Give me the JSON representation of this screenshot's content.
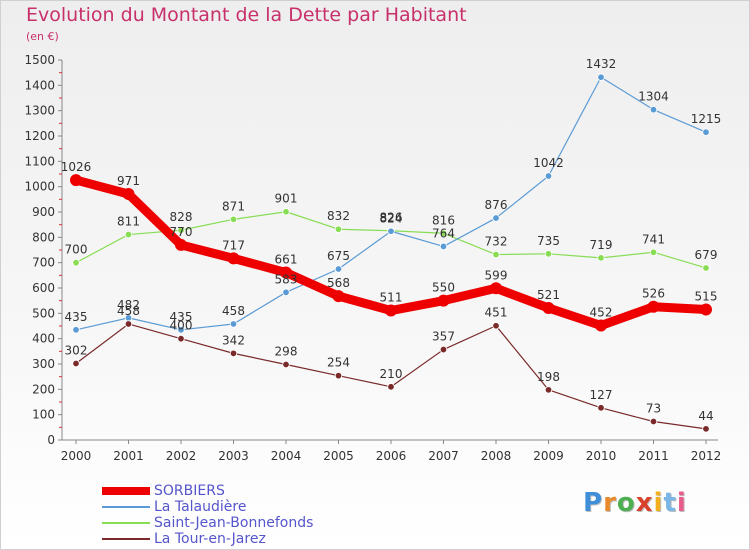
{
  "title": "Evolution du Montant de la Dette par Habitant",
  "subtitle": "(en €)",
  "logo": {
    "text": "Proxiti",
    "colors": [
      "#3f8fd8",
      "#e98a2a",
      "#4caf50",
      "#d8422a",
      "#f2b01e",
      "#7ab5e8",
      "#e95b8a"
    ]
  },
  "chart_data": {
    "type": "line",
    "categories": [
      "2000",
      "2001",
      "2002",
      "2003",
      "2004",
      "2005",
      "2006",
      "2007",
      "2008",
      "2009",
      "2010",
      "2011",
      "2012"
    ],
    "ylim": [
      0,
      1500
    ],
    "yticks": [
      "0",
      "100",
      "200",
      "300",
      "400",
      "500",
      "600",
      "700",
      "800",
      "900",
      "1000",
      "1100",
      "1200",
      "1300",
      "1400",
      "1500"
    ],
    "grid": false,
    "legend_position": "bottom-left",
    "series": [
      {
        "name": "SORBIERS",
        "color": "#ee0000",
        "values": [
          1026,
          971,
          770,
          717,
          661,
          568,
          511,
          550,
          599,
          521,
          452,
          526,
          515
        ],
        "labels": [
          "1026",
          "971",
          "770",
          "717",
          "661",
          "568",
          "511",
          "550",
          "599",
          "521",
          "452",
          "526",
          "515"
        ]
      },
      {
        "name": "La Talaudière",
        "color": "#5b9bd5",
        "values": [
          435,
          482,
          435,
          458,
          583,
          675,
          824,
          764,
          876,
          1042,
          1432,
          1304,
          1215
        ],
        "labels": [
          "435",
          "482",
          "435",
          "458",
          "583",
          "675",
          "824",
          "764",
          "876",
          "1042",
          "1432",
          "1304",
          "1215"
        ]
      },
      {
        "name": "Saint-Jean-Bonnefonds",
        "color": "#88dd55",
        "values": [
          700,
          811,
          828,
          871,
          901,
          832,
          826,
          816,
          732,
          735,
          719,
          741,
          679
        ],
        "labels": [
          "700",
          "811",
          "828",
          "871",
          "901",
          "832",
          "826",
          "816",
          "732",
          "735",
          "719",
          "741",
          "679"
        ]
      },
      {
        "name": "La Tour-en-Jarez",
        "color": "#7a2a2a",
        "values": [
          302,
          458,
          400,
          342,
          298,
          254,
          210,
          357,
          451,
          198,
          127,
          73,
          44
        ],
        "labels": [
          "302",
          "458",
          "400",
          "342",
          "298",
          "254",
          "210",
          "357",
          "451",
          "198",
          "127",
          "73",
          "44"
        ]
      }
    ]
  }
}
